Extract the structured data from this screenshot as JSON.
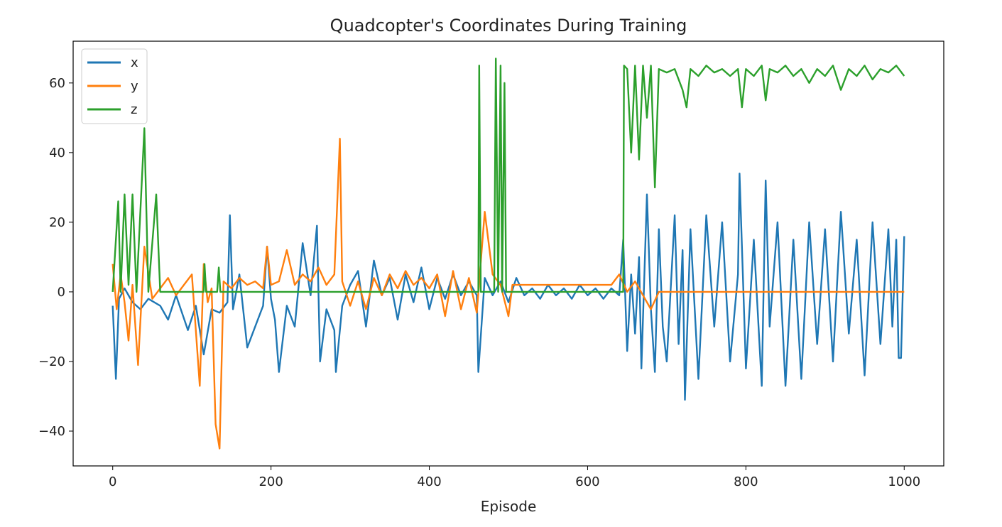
{
  "chart_data": {
    "type": "line",
    "title": "Quadcopter's Coordinates During Training",
    "xlabel": "Episode",
    "ylabel": "",
    "xlim": [
      -50,
      1050
    ],
    "ylim": [
      -50,
      72
    ],
    "xticks": [
      0,
      200,
      400,
      600,
      800,
      1000
    ],
    "yticks": [
      -40,
      -20,
      0,
      20,
      40,
      60
    ],
    "xtick_labels": [
      "0",
      "200",
      "400",
      "600",
      "800",
      "1000"
    ],
    "ytick_labels": [
      "−40",
      "−20",
      "0",
      "20",
      "40",
      "60"
    ],
    "legend_position": "upper-left",
    "series": [
      {
        "name": "x",
        "color": "#1f77b4",
        "points": [
          [
            0,
            -4
          ],
          [
            4,
            -25
          ],
          [
            8,
            -2
          ],
          [
            15,
            1
          ],
          [
            25,
            -3
          ],
          [
            35,
            -5
          ],
          [
            45,
            -2
          ],
          [
            60,
            -4
          ],
          [
            70,
            -8
          ],
          [
            80,
            -1
          ],
          [
            95,
            -11
          ],
          [
            105,
            -4
          ],
          [
            115,
            -18
          ],
          [
            125,
            -5
          ],
          [
            135,
            -6
          ],
          [
            145,
            -3
          ],
          [
            148,
            22
          ],
          [
            152,
            -5
          ],
          [
            160,
            5
          ],
          [
            170,
            -16
          ],
          [
            180,
            -10
          ],
          [
            190,
            -4
          ],
          [
            195,
            13
          ],
          [
            200,
            -2
          ],
          [
            205,
            -8
          ],
          [
            210,
            -23
          ],
          [
            220,
            -4
          ],
          [
            230,
            -10
          ],
          [
            240,
            14
          ],
          [
            250,
            -1
          ],
          [
            258,
            19
          ],
          [
            262,
            -20
          ],
          [
            270,
            -5
          ],
          [
            280,
            -11
          ],
          [
            282,
            -23
          ],
          [
            290,
            -4
          ],
          [
            300,
            2
          ],
          [
            310,
            6
          ],
          [
            320,
            -10
          ],
          [
            330,
            9
          ],
          [
            340,
            -1
          ],
          [
            350,
            4
          ],
          [
            360,
            -8
          ],
          [
            370,
            5
          ],
          [
            380,
            -3
          ],
          [
            390,
            7
          ],
          [
            400,
            -5
          ],
          [
            410,
            4
          ],
          [
            420,
            -2
          ],
          [
            430,
            5
          ],
          [
            440,
            -1
          ],
          [
            450,
            3
          ],
          [
            460,
            -1
          ],
          [
            462,
            -23
          ],
          [
            470,
            4
          ],
          [
            480,
            -1
          ],
          [
            490,
            3
          ],
          [
            500,
            -3
          ],
          [
            510,
            4
          ],
          [
            520,
            -1
          ],
          [
            530,
            1
          ],
          [
            540,
            -2
          ],
          [
            550,
            2
          ],
          [
            560,
            -1
          ],
          [
            570,
            1
          ],
          [
            580,
            -2
          ],
          [
            590,
            2
          ],
          [
            600,
            -1
          ],
          [
            610,
            1
          ],
          [
            620,
            -2
          ],
          [
            630,
            1
          ],
          [
            640,
            -1
          ],
          [
            645,
            15
          ],
          [
            650,
            -17
          ],
          [
            655,
            5
          ],
          [
            660,
            -12
          ],
          [
            665,
            10
          ],
          [
            668,
            -22
          ],
          [
            675,
            28
          ],
          [
            680,
            -5
          ],
          [
            685,
            -23
          ],
          [
            690,
            18
          ],
          [
            695,
            -10
          ],
          [
            700,
            -20
          ],
          [
            710,
            22
          ],
          [
            715,
            -15
          ],
          [
            720,
            12
          ],
          [
            723,
            -31
          ],
          [
            730,
            18
          ],
          [
            740,
            -25
          ],
          [
            750,
            22
          ],
          [
            760,
            -10
          ],
          [
            770,
            20
          ],
          [
            780,
            -20
          ],
          [
            790,
            5
          ],
          [
            792,
            34
          ],
          [
            800,
            -22
          ],
          [
            810,
            15
          ],
          [
            820,
            -27
          ],
          [
            825,
            32
          ],
          [
            830,
            -10
          ],
          [
            840,
            20
          ],
          [
            850,
            -27
          ],
          [
            860,
            15
          ],
          [
            870,
            -25
          ],
          [
            880,
            20
          ],
          [
            890,
            -15
          ],
          [
            900,
            18
          ],
          [
            910,
            -20
          ],
          [
            920,
            23
          ],
          [
            930,
            -12
          ],
          [
            940,
            15
          ],
          [
            950,
            -24
          ],
          [
            960,
            20
          ],
          [
            970,
            -15
          ],
          [
            980,
            18
          ],
          [
            985,
            -10
          ],
          [
            990,
            15
          ],
          [
            993,
            -19
          ],
          [
            996,
            -19
          ],
          [
            1000,
            16
          ]
        ]
      },
      {
        "name": "y",
        "color": "#ff7f0e",
        "points": [
          [
            0,
            8
          ],
          [
            5,
            -5
          ],
          [
            10,
            5
          ],
          [
            15,
            -3
          ],
          [
            20,
            -14
          ],
          [
            25,
            2
          ],
          [
            32,
            -21
          ],
          [
            40,
            13
          ],
          [
            50,
            -2
          ],
          [
            60,
            1
          ],
          [
            70,
            4
          ],
          [
            80,
            -1
          ],
          [
            90,
            2
          ],
          [
            100,
            5
          ],
          [
            110,
            -27
          ],
          [
            115,
            8
          ],
          [
            120,
            -3
          ],
          [
            125,
            1
          ],
          [
            130,
            -38
          ],
          [
            135,
            -45
          ],
          [
            140,
            3
          ],
          [
            150,
            1
          ],
          [
            160,
            4
          ],
          [
            170,
            2
          ],
          [
            180,
            3
          ],
          [
            190,
            1
          ],
          [
            195,
            13
          ],
          [
            200,
            2
          ],
          [
            210,
            3
          ],
          [
            220,
            12
          ],
          [
            230,
            2
          ],
          [
            240,
            5
          ],
          [
            250,
            3
          ],
          [
            260,
            7
          ],
          [
            270,
            2
          ],
          [
            280,
            5
          ],
          [
            287,
            44
          ],
          [
            290,
            3
          ],
          [
            300,
            -4
          ],
          [
            310,
            3
          ],
          [
            320,
            -5
          ],
          [
            330,
            4
          ],
          [
            340,
            -1
          ],
          [
            350,
            5
          ],
          [
            360,
            1
          ],
          [
            370,
            6
          ],
          [
            380,
            2
          ],
          [
            390,
            4
          ],
          [
            400,
            1
          ],
          [
            410,
            5
          ],
          [
            420,
            -7
          ],
          [
            430,
            6
          ],
          [
            440,
            -5
          ],
          [
            450,
            4
          ],
          [
            460,
            -6
          ],
          [
            470,
            23
          ],
          [
            480,
            5
          ],
          [
            490,
            2
          ],
          [
            500,
            -7
          ],
          [
            505,
            2
          ],
          [
            510,
            2
          ],
          [
            550,
            2
          ],
          [
            600,
            2
          ],
          [
            630,
            2
          ],
          [
            640,
            5
          ],
          [
            650,
            0
          ],
          [
            660,
            3
          ],
          [
            680,
            -5
          ],
          [
            690,
            0
          ],
          [
            1000,
            0
          ]
        ]
      },
      {
        "name": "z",
        "color": "#2ca02c",
        "points": [
          [
            0,
            0
          ],
          [
            7,
            26
          ],
          [
            10,
            0
          ],
          [
            15,
            28
          ],
          [
            20,
            2
          ],
          [
            25,
            28
          ],
          [
            30,
            0
          ],
          [
            40,
            47
          ],
          [
            45,
            0
          ],
          [
            55,
            28
          ],
          [
            60,
            0
          ],
          [
            115,
            0
          ],
          [
            116,
            8
          ],
          [
            118,
            0
          ],
          [
            132,
            0
          ],
          [
            134,
            7
          ],
          [
            136,
            0
          ],
          [
            462,
            0
          ],
          [
            463,
            65
          ],
          [
            465,
            0
          ],
          [
            482,
            0
          ],
          [
            484,
            67
          ],
          [
            487,
            0
          ],
          [
            490,
            65
          ],
          [
            492,
            0
          ],
          [
            495,
            60
          ],
          [
            497,
            0
          ],
          [
            645,
            0
          ],
          [
            646,
            65
          ],
          [
            650,
            64
          ],
          [
            655,
            40
          ],
          [
            660,
            65
          ],
          [
            665,
            38
          ],
          [
            670,
            65
          ],
          [
            675,
            50
          ],
          [
            680,
            65
          ],
          [
            685,
            30
          ],
          [
            690,
            64
          ],
          [
            700,
            63
          ],
          [
            710,
            64
          ],
          [
            720,
            58
          ],
          [
            725,
            53
          ],
          [
            730,
            64
          ],
          [
            740,
            62
          ],
          [
            750,
            65
          ],
          [
            760,
            63
          ],
          [
            770,
            64
          ],
          [
            780,
            62
          ],
          [
            790,
            64
          ],
          [
            795,
            53
          ],
          [
            800,
            64
          ],
          [
            810,
            62
          ],
          [
            820,
            65
          ],
          [
            825,
            55
          ],
          [
            830,
            64
          ],
          [
            840,
            63
          ],
          [
            850,
            65
          ],
          [
            860,
            62
          ],
          [
            870,
            64
          ],
          [
            880,
            60
          ],
          [
            890,
            64
          ],
          [
            900,
            62
          ],
          [
            910,
            65
          ],
          [
            920,
            58
          ],
          [
            930,
            64
          ],
          [
            940,
            62
          ],
          [
            950,
            65
          ],
          [
            960,
            61
          ],
          [
            970,
            64
          ],
          [
            980,
            63
          ],
          [
            990,
            65
          ],
          [
            1000,
            62
          ]
        ]
      }
    ]
  }
}
